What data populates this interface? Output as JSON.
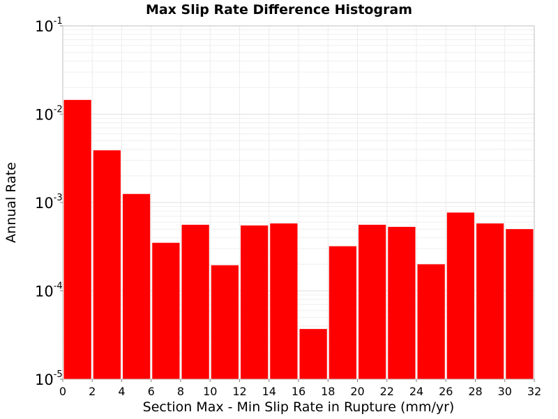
{
  "chart_data": {
    "type": "bar",
    "title": "Max Slip Rate Difference Histogram",
    "xlabel": "Section Max - Min Slip Rate in Rupture (mm/yr)",
    "ylabel": "Annual Rate",
    "xlim": [
      0,
      32
    ],
    "ylim": [
      1e-05,
      0.1
    ],
    "yscale": "log",
    "bin_width": 2,
    "bar_color": "#ff0000",
    "grid": true,
    "x_ticks": [
      "0",
      "2",
      "4",
      "6",
      "8",
      "10",
      "12",
      "14",
      "16",
      "18",
      "20",
      "22",
      "24",
      "26",
      "28",
      "30",
      "32"
    ],
    "y_ticks": [
      {
        "base": "10",
        "exp": "-1",
        "value": 0.1
      },
      {
        "base": "10",
        "exp": "-2",
        "value": 0.01
      },
      {
        "base": "10",
        "exp": "-3",
        "value": 0.001
      },
      {
        "base": "10",
        "exp": "-4",
        "value": 0.0001
      },
      {
        "base": "10",
        "exp": "-5",
        "value": 1e-05
      }
    ],
    "bins": [
      {
        "x_start": 0,
        "value": 0.0145
      },
      {
        "x_start": 2,
        "value": 0.0039
      },
      {
        "x_start": 4,
        "value": 0.00125
      },
      {
        "x_start": 6,
        "value": 0.00035
      },
      {
        "x_start": 8,
        "value": 0.00056
      },
      {
        "x_start": 10,
        "value": 0.000195
      },
      {
        "x_start": 12,
        "value": 0.00055
      },
      {
        "x_start": 14,
        "value": 0.00058
      },
      {
        "x_start": 16,
        "value": 3.7e-05
      },
      {
        "x_start": 18,
        "value": 0.00032
      },
      {
        "x_start": 20,
        "value": 0.00056
      },
      {
        "x_start": 22,
        "value": 0.00053
      },
      {
        "x_start": 24,
        "value": 0.0002
      },
      {
        "x_start": 26,
        "value": 0.00077
      },
      {
        "x_start": 28,
        "value": 0.00058
      },
      {
        "x_start": 30,
        "value": 0.0005
      }
    ]
  }
}
